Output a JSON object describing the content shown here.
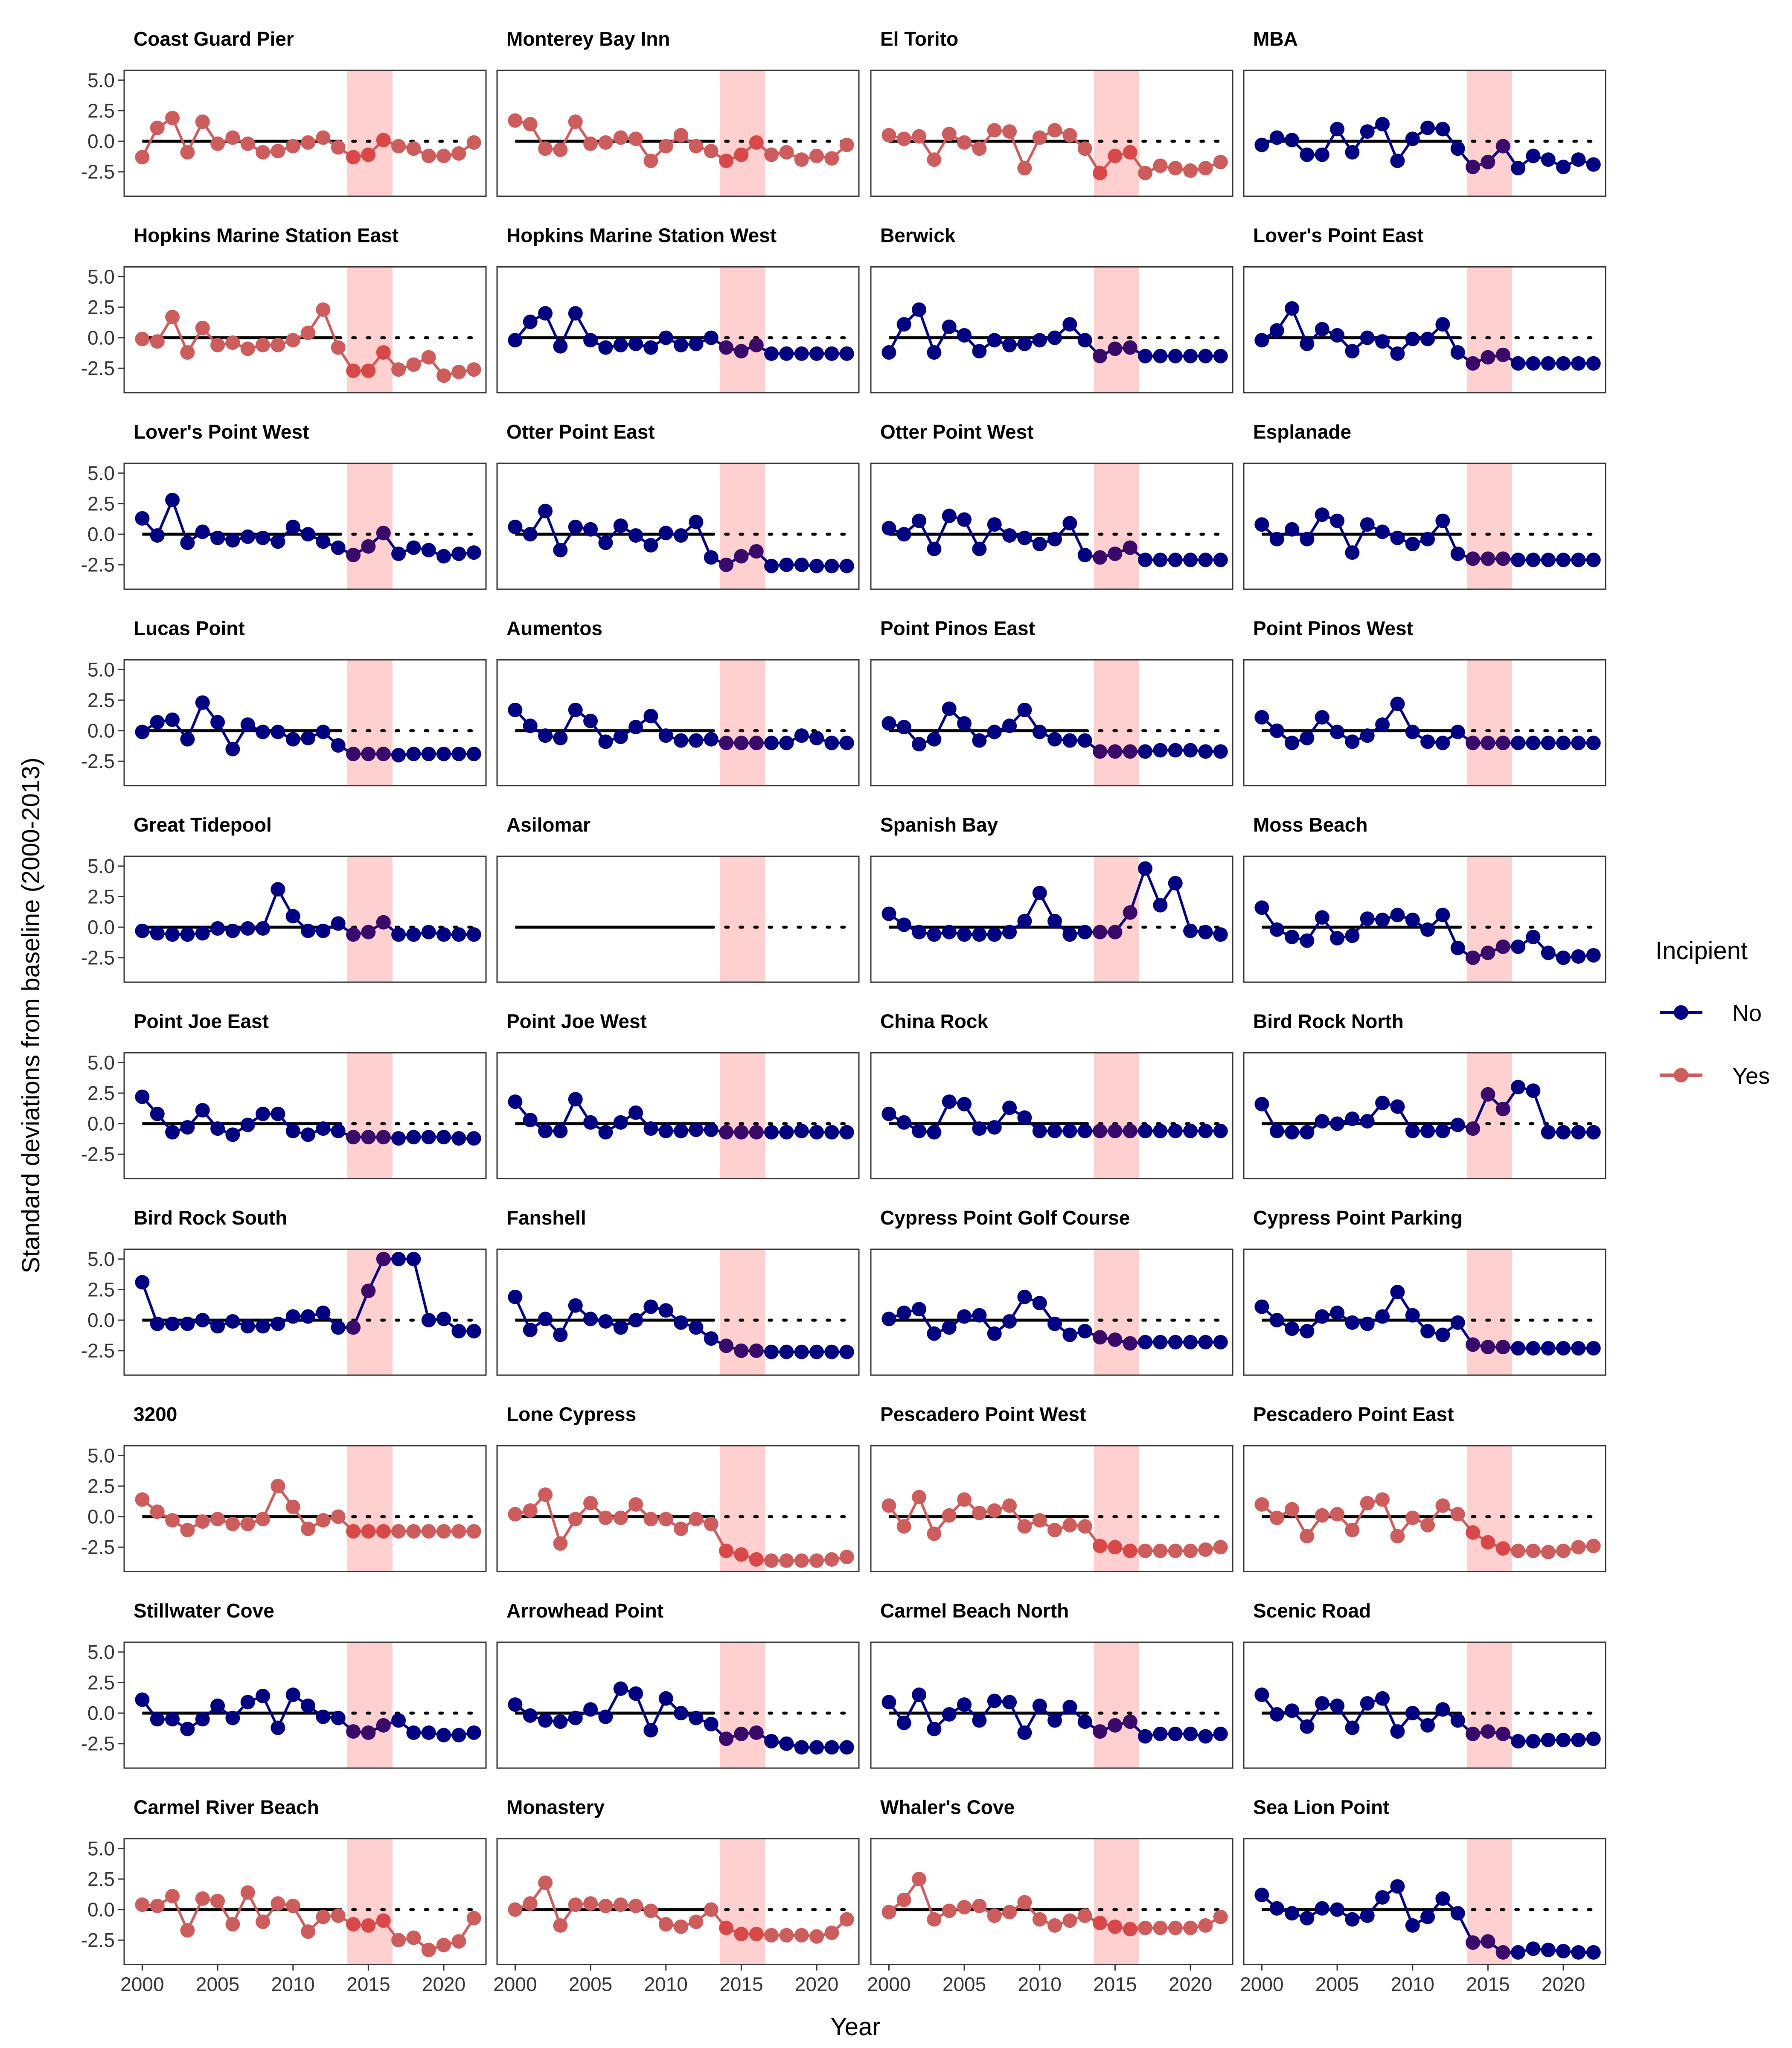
{
  "chart_data": {
    "type": "line",
    "facet_layout": {
      "rows": 10,
      "cols": 4
    },
    "xlabel": "Year",
    "ylabel": "Standard deviations from baseline (2000-2013)",
    "xlim": [
      1998.8,
      2022.8
    ],
    "ylim": [
      -4.5,
      5.8
    ],
    "x_ticks": [
      2000,
      2005,
      2010,
      2015,
      2020
    ],
    "x_tick_labels": [
      "2000",
      "2005",
      "2010",
      "2015",
      "2020"
    ],
    "y_ticks": [
      -2.5,
      0.0,
      2.5,
      5.0
    ],
    "y_tick_labels": [
      "-2.5",
      "0.0",
      "2.5",
      "5.0"
    ],
    "baseline": {
      "y": 0,
      "solid_range": [
        2000,
        2013
      ],
      "dotted_range": [
        2013,
        2022.5
      ]
    },
    "highlight_band": {
      "x_range": [
        2013.6,
        2016.6
      ],
      "color": "#ffd0d0"
    },
    "x": [
      2000,
      2001,
      2002,
      2003,
      2004,
      2005,
      2006,
      2007,
      2008,
      2009,
      2010,
      2011,
      2012,
      2013,
      2014,
      2015,
      2016,
      2017,
      2018,
      2019,
      2020,
      2021,
      2022
    ],
    "legend": {
      "title": "Incipient",
      "position": "right",
      "entries": [
        {
          "label": "No",
          "color": "#000080"
        },
        {
          "label": "Yes",
          "color": "#cd5c5c"
        }
      ]
    },
    "band_overlay_color_no": "#3a0a6a",
    "band_overlay_color_yes": "#d94848",
    "panels": [
      {
        "title": "Coast Guard Pier",
        "incipient": "Yes",
        "values": [
          -1.3,
          1.1,
          1.9,
          -0.9,
          1.6,
          -0.2,
          0.3,
          -0.2,
          -0.9,
          -0.8,
          -0.4,
          -0.1,
          0.3,
          -0.5,
          -1.3,
          -1.1,
          0.1,
          -0.4,
          -0.6,
          -1.2,
          -1.2,
          -1.0,
          -0.1
        ]
      },
      {
        "title": "Monterey Bay Inn",
        "incipient": "Yes",
        "values": [
          1.7,
          1.4,
          -0.6,
          -0.7,
          1.6,
          -0.2,
          -0.1,
          0.3,
          0.2,
          -1.6,
          -0.4,
          0.5,
          -0.4,
          -0.8,
          -1.6,
          -1.1,
          -0.1,
          -1.1,
          -0.9,
          -1.5,
          -1.2,
          -1.4,
          -0.3
        ]
      },
      {
        "title": "El Torito",
        "incipient": "Yes",
        "values": [
          0.5,
          0.2,
          0.4,
          -1.5,
          0.6,
          -0.1,
          -0.6,
          0.9,
          0.8,
          -2.2,
          0.3,
          0.9,
          0.5,
          -0.6,
          -2.6,
          -1.2,
          -0.9,
          -2.6,
          -2.0,
          -2.2,
          -2.4,
          -2.2,
          -1.7
        ]
      },
      {
        "title": "MBA",
        "incipient": "No",
        "values": [
          -0.3,
          0.3,
          0.1,
          -1.1,
          -1.1,
          1.0,
          -0.9,
          0.8,
          1.4,
          -1.6,
          0.2,
          1.1,
          1.0,
          -0.6,
          -2.1,
          -1.7,
          -0.4,
          -2.2,
          -1.2,
          -1.5,
          -2.1,
          -1.5,
          -1.9
        ]
      },
      {
        "title": "Hopkins Marine Station East",
        "incipient": "Yes",
        "values": [
          -0.1,
          -0.3,
          1.7,
          -1.2,
          0.8,
          -0.6,
          -0.4,
          -0.9,
          -0.6,
          -0.6,
          -0.2,
          0.4,
          2.3,
          -0.8,
          -2.7,
          -2.7,
          -1.2,
          -2.6,
          -2.2,
          -1.6,
          -3.1,
          -2.8,
          -2.6
        ]
      },
      {
        "title": "Hopkins Marine Station West",
        "incipient": "No",
        "values": [
          -0.2,
          1.3,
          2.0,
          -0.7,
          2.0,
          -0.2,
          -0.8,
          -0.6,
          -0.5,
          -0.8,
          0.0,
          -0.6,
          -0.5,
          0.0,
          -0.8,
          -1.1,
          -0.6,
          -1.3,
          -1.3,
          -1.3,
          -1.3,
          -1.3,
          -1.3
        ]
      },
      {
        "title": "Berwick",
        "incipient": "No",
        "values": [
          -1.2,
          1.1,
          2.3,
          -1.2,
          0.9,
          0.2,
          -1.1,
          -0.2,
          -0.6,
          -0.5,
          -0.2,
          0.0,
          1.1,
          -0.2,
          -1.5,
          -0.9,
          -0.8,
          -1.5,
          -1.5,
          -1.5,
          -1.5,
          -1.5,
          -1.5
        ]
      },
      {
        "title": "Lover's Point East",
        "incipient": "No",
        "values": [
          -0.2,
          0.6,
          2.4,
          -0.5,
          0.7,
          0.2,
          -1.1,
          0.0,
          -0.3,
          -1.3,
          -0.1,
          -0.1,
          1.1,
          -1.2,
          -2.1,
          -1.6,
          -1.4,
          -2.1,
          -2.1,
          -2.1,
          -2.1,
          -2.1,
          -2.1
        ]
      },
      {
        "title": "Lover's Point West",
        "incipient": "No",
        "values": [
          1.3,
          -0.1,
          2.8,
          -0.7,
          0.2,
          -0.3,
          -0.5,
          -0.2,
          -0.3,
          -0.6,
          0.6,
          0.0,
          -0.6,
          -1.1,
          -1.7,
          -1.0,
          0.1,
          -1.6,
          -1.1,
          -1.3,
          -1.8,
          -1.6,
          -1.5
        ]
      },
      {
        "title": "Otter Point East",
        "incipient": "No",
        "values": [
          0.6,
          0.0,
          1.9,
          -1.3,
          0.6,
          0.4,
          -0.7,
          0.7,
          -0.1,
          -0.9,
          0.1,
          -0.1,
          1.0,
          -1.9,
          -2.5,
          -1.8,
          -1.4,
          -2.6,
          -2.5,
          -2.5,
          -2.6,
          -2.6,
          -2.6
        ]
      },
      {
        "title": "Otter Point West",
        "incipient": "No",
        "values": [
          0.5,
          0.0,
          1.1,
          -1.2,
          1.5,
          1.2,
          -1.2,
          0.8,
          -0.1,
          -0.3,
          -0.8,
          -0.4,
          0.9,
          -1.7,
          -1.9,
          -1.6,
          -1.1,
          -2.1,
          -2.1,
          -2.1,
          -2.1,
          -2.1,
          -2.1
        ]
      },
      {
        "title": "Esplanade",
        "incipient": "No",
        "values": [
          0.8,
          -0.4,
          0.4,
          -0.4,
          1.6,
          1.1,
          -1.5,
          0.8,
          0.2,
          -0.3,
          -0.8,
          -0.4,
          1.1,
          -1.6,
          -2.0,
          -2.0,
          -2.0,
          -2.1,
          -2.1,
          -2.1,
          -2.1,
          -2.1,
          -2.1
        ]
      },
      {
        "title": "Lucas Point",
        "incipient": "No",
        "values": [
          -0.1,
          0.7,
          0.9,
          -0.7,
          2.3,
          0.7,
          -1.5,
          0.5,
          -0.1,
          -0.1,
          -0.7,
          -0.6,
          -0.1,
          -1.2,
          -1.9,
          -1.9,
          -1.9,
          -2.0,
          -1.9,
          -1.9,
          -1.9,
          -1.9,
          -1.9
        ]
      },
      {
        "title": "Aumentos",
        "incipient": "No",
        "values": [
          1.7,
          0.4,
          -0.4,
          -0.6,
          1.7,
          0.8,
          -0.9,
          -0.5,
          0.3,
          1.2,
          -0.4,
          -0.8,
          -0.8,
          -0.7,
          -1.0,
          -1.0,
          -1.0,
          -1.0,
          -1.0,
          -0.4,
          -0.6,
          -1.0,
          -1.0
        ]
      },
      {
        "title": "Point Pinos East",
        "incipient": "No",
        "values": [
          0.6,
          0.3,
          -1.1,
          -0.7,
          1.8,
          0.6,
          -0.8,
          -0.1,
          0.4,
          1.7,
          -0.1,
          -0.7,
          -0.8,
          -0.8,
          -1.7,
          -1.7,
          -1.7,
          -1.7,
          -1.6,
          -1.6,
          -1.6,
          -1.7,
          -1.7
        ]
      },
      {
        "title": "Point Pinos West",
        "incipient": "No",
        "values": [
          1.1,
          0.0,
          -1.0,
          -0.6,
          1.1,
          -0.1,
          -0.9,
          -0.4,
          0.5,
          2.2,
          -0.1,
          -0.9,
          -1.0,
          -0.1,
          -1.0,
          -1.0,
          -1.0,
          -1.0,
          -1.0,
          -1.0,
          -1.0,
          -1.0,
          -1.0
        ]
      },
      {
        "title": "Great Tidepool",
        "incipient": "No",
        "values": [
          -0.3,
          -0.5,
          -0.6,
          -0.6,
          -0.5,
          -0.1,
          -0.3,
          -0.1,
          -0.1,
          3.1,
          0.9,
          -0.3,
          -0.3,
          0.3,
          -0.6,
          -0.4,
          0.4,
          -0.6,
          -0.6,
          -0.4,
          -0.6,
          -0.6,
          -0.6
        ]
      },
      {
        "title": "Asilomar",
        "incipient": "No",
        "values": []
      },
      {
        "title": "Spanish Bay",
        "incipient": "No",
        "values": [
          1.1,
          0.2,
          -0.4,
          -0.6,
          -0.4,
          -0.6,
          -0.6,
          -0.6,
          -0.4,
          0.5,
          2.8,
          0.5,
          -0.6,
          -0.4,
          -0.4,
          -0.4,
          1.2,
          4.8,
          1.8,
          3.6,
          -0.3,
          -0.4,
          -0.6
        ]
      },
      {
        "title": "Moss Beach",
        "incipient": "No",
        "values": [
          1.6,
          -0.2,
          -0.8,
          -1.1,
          0.8,
          -0.9,
          -0.7,
          0.7,
          0.6,
          1.0,
          0.6,
          -0.2,
          1.0,
          -1.7,
          -2.5,
          -2.1,
          -1.6,
          -1.6,
          -0.8,
          -2.1,
          -2.5,
          -2.4,
          -2.3
        ]
      },
      {
        "title": "Point Joe East",
        "incipient": "No",
        "values": [
          2.2,
          0.8,
          -0.7,
          -0.3,
          1.1,
          -0.4,
          -0.9,
          -0.1,
          0.8,
          0.8,
          -0.6,
          -0.9,
          -0.4,
          -0.6,
          -1.1,
          -1.1,
          -1.1,
          -1.2,
          -1.1,
          -1.1,
          -1.1,
          -1.2,
          -1.2
        ]
      },
      {
        "title": "Point Joe West",
        "incipient": "No",
        "values": [
          1.8,
          0.3,
          -0.6,
          -0.6,
          2.0,
          0.1,
          -0.7,
          0.1,
          0.9,
          -0.4,
          -0.6,
          -0.6,
          -0.5,
          -0.5,
          -0.7,
          -0.7,
          -0.7,
          -0.7,
          -0.7,
          -0.6,
          -0.7,
          -0.7,
          -0.7
        ]
      },
      {
        "title": "China Rock",
        "incipient": "No",
        "values": [
          0.8,
          0.1,
          -0.6,
          -0.7,
          1.8,
          1.6,
          -0.4,
          -0.3,
          1.3,
          0.5,
          -0.6,
          -0.6,
          -0.6,
          -0.6,
          -0.6,
          -0.6,
          -0.6,
          -0.6,
          -0.6,
          -0.6,
          -0.6,
          -0.6,
          -0.6
        ]
      },
      {
        "title": "Bird Rock North",
        "incipient": "No",
        "values": [
          1.6,
          -0.6,
          -0.7,
          -0.7,
          0.2,
          0.0,
          0.4,
          0.2,
          1.7,
          1.4,
          -0.6,
          -0.6,
          -0.6,
          -0.1,
          -0.4,
          2.4,
          1.2,
          3.0,
          2.7,
          -0.7,
          -0.7,
          -0.7,
          -0.7
        ]
      },
      {
        "title": "Bird Rock South",
        "incipient": "No",
        "values": [
          3.1,
          -0.3,
          -0.3,
          -0.3,
          0.0,
          -0.5,
          -0.1,
          -0.5,
          -0.5,
          -0.3,
          0.3,
          0.3,
          0.6,
          -0.6,
          -0.6,
          2.4,
          5.0,
          5.0,
          5.0,
          0.0,
          0.1,
          -0.9,
          -0.9
        ]
      },
      {
        "title": "Fanshell",
        "incipient": "No",
        "values": [
          1.9,
          -0.8,
          0.1,
          -1.2,
          1.2,
          0.1,
          -0.1,
          -0.6,
          0.0,
          1.1,
          0.8,
          -0.2,
          -0.6,
          -1.5,
          -2.1,
          -2.5,
          -2.5,
          -2.6,
          -2.6,
          -2.6,
          -2.6,
          -2.6,
          -2.6
        ]
      },
      {
        "title": "Cypress Point Golf Course",
        "incipient": "No",
        "values": [
          0.1,
          0.6,
          0.9,
          -1.1,
          -0.6,
          0.3,
          0.4,
          -1.1,
          -0.1,
          1.9,
          1.4,
          -0.3,
          -1.2,
          -0.9,
          -1.4,
          -1.6,
          -1.9,
          -1.8,
          -1.8,
          -1.8,
          -1.8,
          -1.8,
          -1.8
        ]
      },
      {
        "title": "Cypress Point Parking",
        "incipient": "No",
        "values": [
          1.1,
          0.0,
          -0.7,
          -0.9,
          0.3,
          0.6,
          -0.2,
          -0.3,
          0.3,
          2.3,
          0.4,
          -0.9,
          -1.2,
          -0.2,
          -2.0,
          -2.2,
          -2.2,
          -2.3,
          -2.3,
          -2.3,
          -2.3,
          -2.3,
          -2.3
        ]
      },
      {
        "title": "3200",
        "incipient": "Yes",
        "values": [
          1.4,
          0.4,
          -0.3,
          -1.1,
          -0.4,
          -0.2,
          -0.6,
          -0.6,
          -0.2,
          2.5,
          0.8,
          -1.0,
          -0.3,
          0.0,
          -1.2,
          -1.2,
          -1.2,
          -1.2,
          -1.2,
          -1.2,
          -1.2,
          -1.2,
          -1.2
        ]
      },
      {
        "title": "Lone Cypress",
        "incipient": "Yes",
        "values": [
          0.2,
          0.5,
          1.8,
          -2.2,
          -0.2,
          1.1,
          -0.1,
          -0.1,
          1.0,
          -0.2,
          -0.2,
          -1.0,
          -0.2,
          -0.6,
          -2.8,
          -3.1,
          -3.5,
          -3.6,
          -3.6,
          -3.6,
          -3.6,
          -3.5,
          -3.3
        ]
      },
      {
        "title": "Pescadero Point West",
        "incipient": "Yes",
        "values": [
          0.9,
          -0.8,
          1.6,
          -1.4,
          0.1,
          1.4,
          0.3,
          0.5,
          0.9,
          -0.8,
          -0.3,
          -1.1,
          -0.7,
          -0.8,
          -2.4,
          -2.5,
          -2.8,
          -2.8,
          -2.8,
          -2.8,
          -2.8,
          -2.7,
          -2.5
        ]
      },
      {
        "title": "Pescadero Point East",
        "incipient": "Yes",
        "values": [
          1.0,
          -0.1,
          0.6,
          -1.6,
          0.1,
          0.2,
          -1.1,
          1.1,
          1.4,
          -1.6,
          -0.1,
          -0.7,
          0.9,
          0.2,
          -1.3,
          -2.1,
          -2.6,
          -2.8,
          -2.8,
          -2.9,
          -2.8,
          -2.5,
          -2.4
        ]
      },
      {
        "title": "Stillwater Cove",
        "incipient": "No",
        "values": [
          1.1,
          -0.5,
          -0.5,
          -1.3,
          -0.5,
          0.6,
          -0.4,
          0.9,
          1.4,
          -1.2,
          1.5,
          0.6,
          -0.3,
          -0.4,
          -1.5,
          -1.6,
          -1.0,
          -0.6,
          -1.6,
          -1.6,
          -1.8,
          -1.8,
          -1.6
        ]
      },
      {
        "title": "Arrowhead Point",
        "incipient": "No",
        "values": [
          0.7,
          -0.2,
          -0.6,
          -0.7,
          -0.4,
          0.3,
          -0.3,
          2.0,
          1.6,
          -1.4,
          1.2,
          0.0,
          -0.4,
          -0.9,
          -2.1,
          -1.7,
          -1.6,
          -2.3,
          -2.5,
          -2.8,
          -2.8,
          -2.8,
          -2.8
        ]
      },
      {
        "title": "Carmel Beach North",
        "incipient": "No",
        "values": [
          0.9,
          -0.8,
          1.5,
          -1.3,
          -0.1,
          0.7,
          -0.6,
          1.0,
          0.9,
          -1.6,
          0.6,
          -0.6,
          0.5,
          -0.7,
          -1.5,
          -1.0,
          -0.7,
          -1.9,
          -1.7,
          -1.7,
          -1.7,
          -1.9,
          -1.7
        ]
      },
      {
        "title": "Scenic Road",
        "incipient": "No",
        "values": [
          1.5,
          -0.1,
          0.2,
          -1.1,
          0.8,
          0.6,
          -1.2,
          0.8,
          1.2,
          -1.5,
          0.0,
          -1.0,
          0.3,
          -0.6,
          -1.7,
          -1.5,
          -1.7,
          -2.3,
          -2.3,
          -2.2,
          -2.2,
          -2.2,
          -2.1
        ]
      },
      {
        "title": "Carmel River Beach",
        "incipient": "Yes",
        "values": [
          0.4,
          0.3,
          1.1,
          -1.7,
          0.9,
          0.7,
          -1.2,
          1.4,
          -1.0,
          0.5,
          0.3,
          -1.8,
          -0.6,
          -0.5,
          -1.2,
          -1.3,
          -0.9,
          -2.5,
          -2.3,
          -3.3,
          -2.9,
          -2.6,
          -0.7
        ]
      },
      {
        "title": "Monastery",
        "incipient": "Yes",
        "values": [
          0.0,
          0.5,
          2.2,
          -1.3,
          0.4,
          0.5,
          0.3,
          0.4,
          0.3,
          -0.1,
          -1.2,
          -1.4,
          -1.0,
          0.0,
          -1.5,
          -2.0,
          -2.0,
          -2.1,
          -2.1,
          -2.1,
          -2.2,
          -1.9,
          -0.8
        ]
      },
      {
        "title": "Whaler's Cove",
        "incipient": "Yes",
        "values": [
          -0.2,
          0.8,
          2.5,
          -0.8,
          -0.1,
          0.2,
          0.3,
          -0.5,
          -0.2,
          0.6,
          -0.8,
          -1.3,
          -0.9,
          -0.5,
          -1.1,
          -1.4,
          -1.6,
          -1.5,
          -1.5,
          -1.5,
          -1.5,
          -1.3,
          -0.6
        ]
      },
      {
        "title": "Sea Lion Point",
        "incipient": "No",
        "values": [
          1.2,
          0.1,
          -0.3,
          -0.7,
          0.1,
          0.0,
          -0.8,
          -0.5,
          1.0,
          1.9,
          -1.3,
          -0.6,
          0.9,
          -0.3,
          -2.7,
          -2.6,
          -3.5,
          -3.5,
          -3.2,
          -3.3,
          -3.4,
          -3.5,
          -3.5
        ]
      }
    ]
  }
}
